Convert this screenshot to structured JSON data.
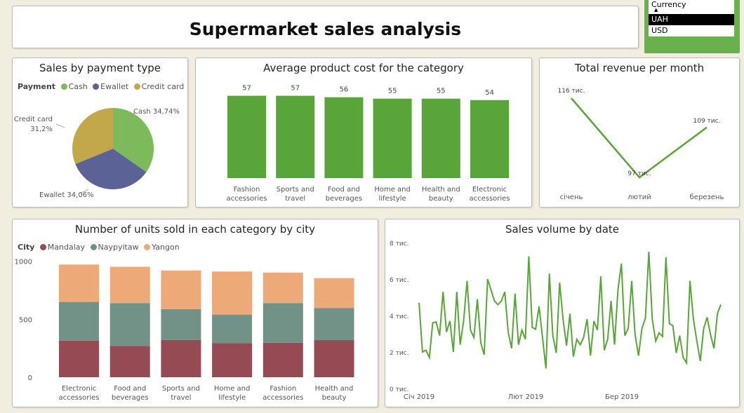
{
  "header": {
    "title": "Supermarket sales analysis"
  },
  "currency_slicer": {
    "label": "Currency",
    "options": [
      {
        "label": "UAH",
        "selected": true
      },
      {
        "label": "USD",
        "selected": false
      }
    ]
  },
  "colors": {
    "green": "#5aa53a",
    "cash": "#7cba5c",
    "ewallet": "#5b6396",
    "credit_card": "#c2a74b",
    "mandalay": "#964b54",
    "naypyitaw": "#739287",
    "yangon": "#eda978"
  },
  "payment_chart": {
    "title": "Sales by payment type",
    "legend_title": "Payment",
    "legend": [
      "Cash",
      "Ewallet",
      "Credit card"
    ],
    "labels": {
      "cash": "Cash 34,74%",
      "ewallet": "Ewallet 34,06%",
      "credit_card_name": "Credit card",
      "credit_card_pct": "31,2%"
    }
  },
  "avg_cost_chart": {
    "title": "Average product cost for the category",
    "value_labels": [
      "57",
      "57",
      "56",
      "55",
      "55",
      "54"
    ],
    "category_lines": [
      [
        "Fashion",
        "accessories"
      ],
      [
        "Sports and",
        "travel"
      ],
      [
        "Food and",
        "beverages"
      ],
      [
        "Home and",
        "lifestyle"
      ],
      [
        "Health and",
        "beauty"
      ],
      [
        "Electronic",
        "accessories"
      ]
    ]
  },
  "revenue_chart": {
    "title": "Total revenue per month",
    "point_labels": [
      "116 тис.",
      "97 тис.",
      "109 тис."
    ],
    "months": [
      "січень",
      "лютий",
      "березень"
    ]
  },
  "units_chart": {
    "title": "Number of units sold in each category by city",
    "legend_title": "City",
    "legend": [
      "Mandalay",
      "Naypyitaw",
      "Yangon"
    ],
    "y_ticks": [
      "1000",
      "500",
      "0"
    ],
    "category_lines": [
      [
        "Electronic",
        "accessories"
      ],
      [
        "Food and",
        "beverages"
      ],
      [
        "Sports and",
        "travel"
      ],
      [
        "Home and",
        "lifestyle"
      ],
      [
        "Fashion",
        "accessories"
      ],
      [
        "Health and",
        "beauty"
      ]
    ]
  },
  "sales_volume_chart": {
    "title": "Sales volume by date",
    "y_ticks": [
      "8 тис.",
      "6 тис.",
      "4 тис.",
      "2 тис.",
      "0 тис."
    ],
    "x_ticks": [
      "Січ 2019",
      "Лют 2019",
      "Бер 2019"
    ]
  },
  "chart_data": [
    {
      "type": "pie",
      "title": "Sales by payment type",
      "categories": [
        "Cash",
        "Ewallet",
        "Credit card"
      ],
      "values": [
        34.74,
        34.06,
        31.2
      ],
      "unit": "%",
      "legend": "top-left"
    },
    {
      "type": "bar",
      "title": "Average product cost for the category",
      "categories": [
        "Fashion accessories",
        "Sports and travel",
        "Food and beverages",
        "Home and lifestyle",
        "Health and beauty",
        "Electronic accessories"
      ],
      "values": [
        57,
        57,
        56,
        55,
        55,
        54
      ]
    },
    {
      "type": "line",
      "title": "Total revenue per month",
      "categories": [
        "січень",
        "лютий",
        "березень"
      ],
      "values": [
        116000,
        97000,
        109000
      ]
    },
    {
      "type": "bar",
      "stacked": true,
      "title": "Number of units sold in each category by city",
      "categories": [
        "Electronic accessories",
        "Food and beverages",
        "Sports and travel",
        "Home and lifestyle",
        "Fashion accessories",
        "Health and beauty"
      ],
      "series": [
        {
          "name": "Mandalay",
          "values": [
            316,
            270,
            322,
            295,
            297,
            320
          ]
        },
        {
          "name": "Naypyitaw",
          "values": [
            333,
            369,
            265,
            245,
            342,
            277
          ]
        },
        {
          "name": "Yangon",
          "values": [
            322,
            313,
            333,
            371,
            263,
            257
          ]
        }
      ],
      "ylim": [
        0,
        1000
      ],
      "legend": "top-left"
    },
    {
      "type": "line",
      "title": "Sales volume by date",
      "x": [
        "2019-01-01",
        "2019-01-02",
        "2019-01-03",
        "2019-01-04",
        "2019-01-05",
        "2019-01-06",
        "2019-01-07",
        "2019-01-08",
        "2019-01-09",
        "2019-01-10",
        "2019-01-11",
        "2019-01-12",
        "2019-01-13",
        "2019-01-14",
        "2019-01-15",
        "2019-01-16",
        "2019-01-17",
        "2019-01-18",
        "2019-01-19",
        "2019-01-20",
        "2019-01-21",
        "2019-01-22",
        "2019-01-23",
        "2019-01-24",
        "2019-01-25",
        "2019-01-26",
        "2019-01-27",
        "2019-01-28",
        "2019-01-29",
        "2019-01-30",
        "2019-01-31",
        "2019-02-01",
        "2019-02-02",
        "2019-02-03",
        "2019-02-04",
        "2019-02-05",
        "2019-02-06",
        "2019-02-07",
        "2019-02-08",
        "2019-02-09",
        "2019-02-10",
        "2019-02-11",
        "2019-02-12",
        "2019-02-13",
        "2019-02-14",
        "2019-02-15",
        "2019-02-16",
        "2019-02-17",
        "2019-02-18",
        "2019-02-19",
        "2019-02-20",
        "2019-02-21",
        "2019-02-22",
        "2019-02-23",
        "2019-02-24",
        "2019-02-25",
        "2019-02-26",
        "2019-02-27",
        "2019-02-28",
        "2019-03-01",
        "2019-03-02",
        "2019-03-03",
        "2019-03-04",
        "2019-03-05",
        "2019-03-06",
        "2019-03-07",
        "2019-03-08",
        "2019-03-09",
        "2019-03-10",
        "2019-03-11",
        "2019-03-12",
        "2019-03-13",
        "2019-03-14",
        "2019-03-15",
        "2019-03-16",
        "2019-03-17",
        "2019-03-18",
        "2019-03-19",
        "2019-03-20",
        "2019-03-21",
        "2019-03-22",
        "2019-03-23",
        "2019-03-24",
        "2019-03-25",
        "2019-03-26",
        "2019-03-27",
        "2019-03-28",
        "2019-03-29",
        "2019-03-30"
      ],
      "values": [
        4700,
        2000,
        2100,
        1700,
        3600,
        3650,
        2900,
        5300,
        3100,
        3700,
        2000,
        5300,
        2400,
        3700,
        5900,
        3200,
        2800,
        4900,
        2500,
        1850,
        6000,
        5400,
        4800,
        4600,
        4800,
        5300,
        3100,
        2200,
        5200,
        2400,
        3200,
        2700,
        7250,
        3350,
        3250,
        4500,
        2800,
        1100,
        6300,
        2900,
        1950,
        5800,
        3800,
        2350,
        4100,
        1750,
        2700,
        2400,
        2800,
        3800,
        1800,
        3700,
        3200,
        6150,
        2100,
        2700,
        4800,
        2400,
        5400,
        6850,
        2900,
        3300,
        5900,
        2950,
        1800,
        3300,
        3850,
        7500,
        3800,
        2600,
        3050,
        2850,
        7200,
        3550,
        3450,
        1950,
        2900,
        1700,
        1400,
        5900,
        3800,
        2600,
        1500,
        3300,
        3900,
        2950,
        2200,
        4100,
        4600
      ],
      "y_ticks": [
        "0 тис.",
        "2 тис.",
        "4 тис.",
        "6 тис.",
        "8 тис."
      ],
      "ylim": [
        0,
        8000
      ]
    }
  ]
}
